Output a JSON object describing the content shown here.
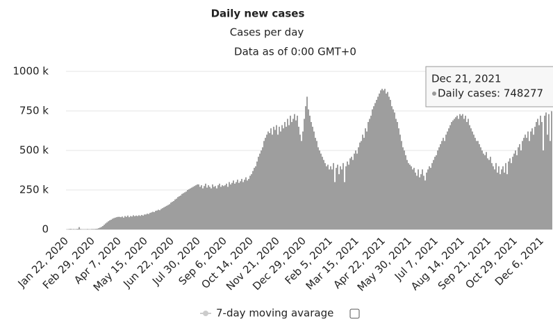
{
  "chart_data": {
    "type": "bar",
    "title": "Daily new cases",
    "subtitle": "Cases per day",
    "note": "Data as of 0:00 GMT+0",
    "categories": [
      "Jan 22, 2020",
      null,
      null,
      null,
      null,
      null,
      null,
      null,
      null,
      null,
      null,
      null,
      null,
      null,
      null,
      null,
      null,
      null,
      null,
      "Feb 29, 2020",
      null,
      null,
      null,
      null,
      null,
      null,
      null,
      null,
      null,
      null,
      null,
      null,
      null,
      null,
      null,
      null,
      null,
      null,
      "Apr 7, 2020",
      null,
      null,
      null,
      null,
      null,
      null,
      null,
      null,
      null,
      null,
      null,
      null,
      null,
      null,
      null,
      null,
      null,
      null,
      "May 15, 2020",
      null,
      null,
      null,
      null,
      null,
      null,
      null,
      null,
      null,
      null,
      null,
      null,
      null,
      null,
      null,
      null,
      null,
      null,
      "Jun 22, 2020",
      null,
      null,
      null,
      null,
      null,
      null,
      null,
      null,
      null,
      null,
      null,
      null,
      null,
      null,
      null,
      null,
      null,
      null,
      "Jul 30, 2020",
      null,
      null,
      null,
      null,
      null,
      null,
      null,
      null,
      null,
      null,
      null,
      null,
      null,
      null,
      null,
      null,
      null,
      null,
      "Sep 6, 2020",
      null,
      null,
      null,
      null,
      null,
      null,
      null,
      null,
      null,
      null,
      null,
      null,
      null,
      null,
      null,
      null,
      null,
      null,
      "Oct 14, 2020",
      null,
      null,
      null,
      null,
      null,
      null,
      null,
      null,
      null,
      null,
      null,
      null,
      null,
      null,
      null,
      null,
      null,
      null,
      "Nov 21, 2020",
      null,
      null,
      null,
      null,
      null,
      null,
      null,
      null,
      null,
      null,
      null,
      null,
      null,
      null,
      null,
      null,
      null,
      null,
      "Dec 29, 2020",
      null,
      null,
      null,
      null,
      null,
      null,
      null,
      null,
      null,
      null,
      null,
      null,
      null,
      null,
      null,
      null,
      null,
      null,
      "Feb 5, 2021",
      null,
      null,
      null,
      null,
      null,
      null,
      null,
      null,
      null,
      null,
      null,
      null,
      null,
      null,
      null,
      null,
      null,
      null,
      "Mar 15, 2021",
      null,
      null,
      null,
      null,
      null,
      null,
      null,
      null,
      null,
      null,
      null,
      null,
      null,
      null,
      null,
      null,
      null,
      null,
      "Apr 22, 2021",
      null,
      null,
      null,
      null,
      null,
      null,
      null,
      null,
      null,
      null,
      null,
      null,
      null,
      null,
      null,
      null,
      null,
      null,
      "May 30, 2021",
      null,
      null,
      null,
      null,
      null,
      null,
      null,
      null,
      null,
      null,
      null,
      null,
      null,
      null,
      null,
      null,
      null,
      null,
      "Jul 7, 2021",
      null,
      null,
      null,
      null,
      null,
      null,
      null,
      null,
      null,
      null,
      null,
      null,
      null,
      null,
      null,
      null,
      null,
      null,
      "Aug 14, 2021",
      null,
      null,
      null,
      null,
      null,
      null,
      null,
      null,
      null,
      null,
      null,
      null,
      null,
      null,
      null,
      null,
      null,
      null,
      "Sep 21, 2021",
      null,
      null,
      null,
      null,
      null,
      null,
      null,
      null,
      null,
      null,
      null,
      null,
      null,
      null,
      null,
      null,
      null,
      null,
      "Oct 29, 2021",
      null,
      null,
      null,
      null,
      null,
      null,
      null,
      null,
      null,
      null,
      null,
      null,
      null,
      null,
      null,
      null,
      null,
      null,
      "Dec 6, 2021",
      null,
      null,
      null,
      null,
      null,
      null,
      null
    ],
    "values": [
      1,
      2,
      3,
      4,
      2,
      3,
      2,
      3,
      4,
      15,
      3,
      2,
      2,
      2,
      2,
      3,
      2,
      2,
      3,
      3,
      3,
      4,
      5,
      8,
      12,
      16,
      22,
      30,
      38,
      45,
      52,
      58,
      62,
      68,
      72,
      75,
      78,
      80,
      80,
      78,
      82,
      75,
      85,
      80,
      88,
      78,
      85,
      82,
      90,
      84,
      88,
      85,
      90,
      86,
      92,
      88,
      95,
      95,
      100,
      98,
      105,
      108,
      112,
      110,
      118,
      120,
      125,
      122,
      130,
      135,
      140,
      145,
      150,
      155,
      160,
      170,
      175,
      180,
      190,
      195,
      205,
      210,
      215,
      225,
      230,
      235,
      240,
      250,
      255,
      260,
      265,
      270,
      275,
      280,
      285,
      285,
      270,
      280,
      260,
      275,
      290,
      265,
      280,
      270,
      260,
      285,
      270,
      275,
      260,
      280,
      290,
      270,
      280,
      275,
      280,
      290,
      270,
      300,
      285,
      295,
      310,
      290,
      300,
      315,
      295,
      305,
      320,
      300,
      315,
      330,
      310,
      320,
      340,
      350,
      370,
      390,
      400,
      430,
      460,
      480,
      500,
      520,
      560,
      580,
      600,
      620,
      610,
      640,
      600,
      650,
      630,
      660,
      600,
      650,
      620,
      660,
      640,
      680,
      650,
      700,
      660,
      720,
      680,
      700,
      730,
      690,
      720,
      650,
      600,
      560,
      620,
      700,
      780,
      840,
      760,
      720,
      680,
      650,
      620,
      580,
      560,
      520,
      500,
      480,
      460,
      440,
      420,
      400,
      410,
      380,
      400,
      380,
      420,
      300,
      390,
      410,
      350,
      400,
      380,
      420,
      300,
      400,
      430,
      410,
      450,
      460,
      440,
      480,
      500,
      480,
      520,
      550,
      560,
      600,
      580,
      640,
      620,
      680,
      700,
      720,
      760,
      780,
      800,
      820,
      840,
      860,
      880,
      890,
      880,
      890,
      860,
      870,
      840,
      820,
      780,
      760,
      740,
      700,
      680,
      640,
      600,
      560,
      520,
      500,
      470,
      440,
      420,
      410,
      400,
      380,
      390,
      360,
      340,
      380,
      330,
      350,
      380,
      340,
      310,
      360,
      380,
      400,
      390,
      420,
      440,
      460,
      470,
      500,
      520,
      540,
      560,
      580,
      560,
      600,
      620,
      640,
      660,
      680,
      690,
      700,
      710,
      720,
      700,
      730,
      720,
      730,
      700,
      720,
      680,
      700,
      660,
      640,
      620,
      600,
      580,
      560,
      560,
      540,
      520,
      500,
      480,
      470,
      490,
      450,
      440,
      460,
      420,
      400,
      380,
      420,
      360,
      400,
      350,
      380,
      400,
      360,
      420,
      350,
      430,
      450,
      420,
      460,
      480,
      500,
      470,
      520,
      540,
      500,
      560,
      580,
      600,
      580,
      620,
      560,
      620,
      640,
      600,
      650,
      680,
      700,
      660,
      720,
      680,
      500,
      720,
      740,
      600,
      730,
      560,
      748
    ],
    "color": "#9e9e9e",
    "ylim": [
      0,
      1000
    ],
    "yticks": [
      0,
      {
        "value": 250,
        "label": "250 k"
      },
      {
        "value": 500,
        "label": "500 k"
      },
      {
        "value": 750,
        "label": "750 k"
      },
      {
        "value": 1000,
        "label": "1000 k"
      }
    ],
    "grid": true,
    "legend": "7-day moving avarage",
    "tooltip": {
      "date": "Dec 21, 2021",
      "text": "Daily cases: 748277"
    }
  }
}
